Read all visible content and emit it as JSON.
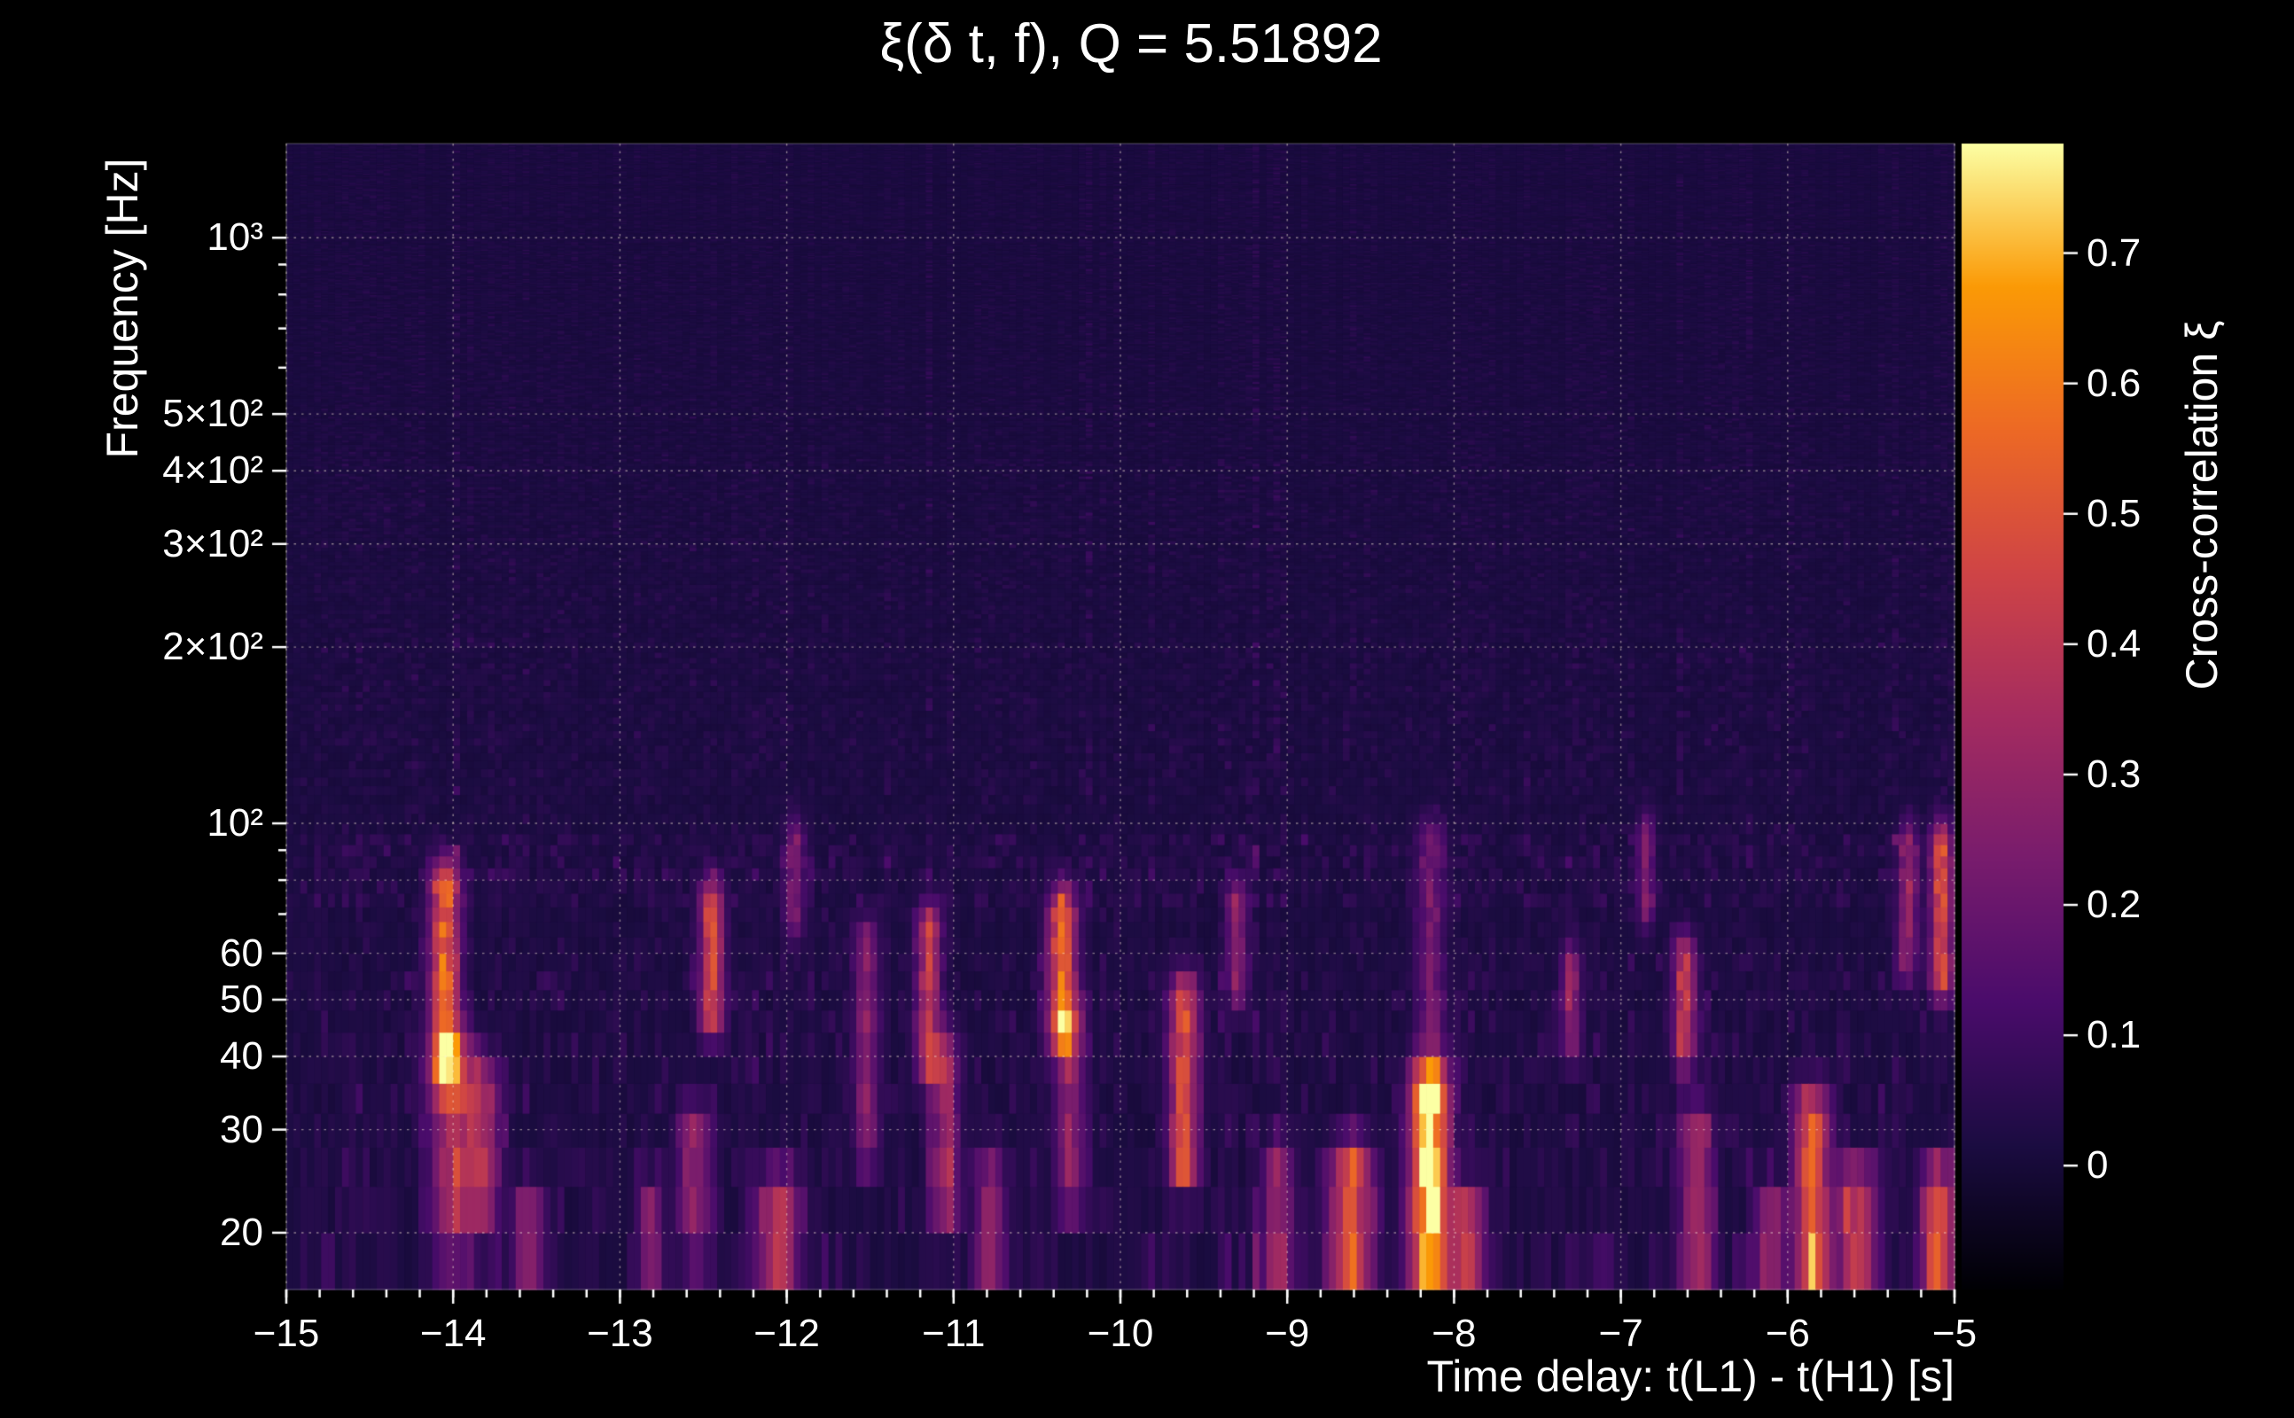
{
  "page": {
    "background": "#000000",
    "text_color": "#ffffff"
  },
  "chart_data": {
    "type": "heatmap",
    "title": "ξ(δ t, f), Q = 5.51892",
    "xlabel": "Time delay: t(L1) - t(H1) [s]",
    "ylabel": "Frequency [Hz]",
    "colorbar_label": "Cross-correlation ξ",
    "x_range": [
      -15,
      -5
    ],
    "x_ticks": [
      -15,
      -14,
      -13,
      -12,
      -11,
      -10,
      -9,
      -8,
      -7,
      -6,
      -5
    ],
    "x_tick_labels": [
      "−15",
      "−14",
      "−13",
      "−12",
      "−11",
      "−10",
      "−9",
      "−8",
      "−7",
      "−6",
      "−5"
    ],
    "x_minor_step": 0.2,
    "y_scale": "log",
    "y_range": [
      16,
      1448
    ],
    "y_ticks": [
      20,
      30,
      40,
      50,
      60,
      100,
      200,
      300,
      400,
      500,
      1000
    ],
    "y_tick_labels": [
      "20",
      "30",
      "40",
      "50",
      "60",
      "10²",
      "2×10²",
      "3×10²",
      "4×10²",
      "5×10²",
      "10³"
    ],
    "y_minor_ticks": [
      70,
      80,
      90,
      600,
      700,
      800,
      900
    ],
    "y_grid": [
      20,
      30,
      40,
      50,
      60,
      80,
      100,
      200,
      300,
      400,
      500,
      1000
    ],
    "value_range": [
      -0.095,
      0.784
    ],
    "colorbar_ticks": [
      0,
      0.1,
      0.2,
      0.3,
      0.4,
      0.5,
      0.6,
      0.7
    ],
    "colorbar_tick_labels": [
      "0",
      "0.1",
      "0.2",
      "0.3",
      "0.4",
      "0.5",
      "0.6",
      "0.7"
    ],
    "grid": "dotted",
    "colormap": {
      "name": "inferno",
      "stops": [
        [
          0.0,
          "#000004"
        ],
        [
          0.125,
          "#1b0c41"
        ],
        [
          0.25,
          "#4a0c6b"
        ],
        [
          0.375,
          "#781c6d"
        ],
        [
          0.5,
          "#a52c60"
        ],
        [
          0.625,
          "#cf4446"
        ],
        [
          0.75,
          "#ed6925"
        ],
        [
          0.875,
          "#fb9a06"
        ],
        [
          1.0,
          "#fcffa4"
        ]
      ]
    },
    "noise": {
      "seed": 1337,
      "n_time_bins": 240,
      "f_step": 4,
      "bands": [
        {
          "f_max": 19,
          "amp": 2.1
        },
        {
          "f_max": 30,
          "amp": 1.7
        },
        {
          "f_max": 62,
          "amp": 1.45
        },
        {
          "f_max": 72,
          "amp": 1.0
        },
        {
          "f_max": 96,
          "amp": 1.75
        },
        {
          "f_max": 112,
          "amp": 0.85
        },
        {
          "f_max": 210,
          "amp": 1.05
        },
        {
          "f_max": 420,
          "amp": 0.9
        },
        {
          "f_max": 99999,
          "amp": 0.8
        }
      ]
    },
    "features": [
      {
        "t": -14.05,
        "f_lo": 38,
        "f_hi": 78,
        "value": 0.55,
        "t_width": 0.06
      },
      {
        "t": -14.0,
        "f_lo": 20,
        "f_hi": 40,
        "value": 0.36,
        "t_width": 0.09
      },
      {
        "t": -13.82,
        "f_lo": 23,
        "f_hi": 36,
        "value": 0.3,
        "t_width": 0.07
      },
      {
        "t": -13.55,
        "f_lo": 16,
        "f_hi": 22,
        "value": 0.28,
        "t_width": 0.06
      },
      {
        "t": -12.82,
        "f_lo": 16,
        "f_hi": 22,
        "value": 0.26,
        "t_width": 0.05
      },
      {
        "t": -12.45,
        "f_lo": 48,
        "f_hi": 72,
        "value": 0.46,
        "t_width": 0.05
      },
      {
        "t": -12.55,
        "f_lo": 20,
        "f_hi": 30,
        "value": 0.26,
        "t_width": 0.07
      },
      {
        "t": -12.05,
        "f_lo": 16,
        "f_hi": 23,
        "value": 0.34,
        "t_width": 0.09
      },
      {
        "t": -11.95,
        "f_lo": 70,
        "f_hi": 92,
        "value": 0.24,
        "t_width": 0.04
      },
      {
        "t": -11.52,
        "f_lo": 28,
        "f_hi": 62,
        "value": 0.26,
        "t_width": 0.05
      },
      {
        "t": -11.15,
        "f_lo": 40,
        "f_hi": 66,
        "value": 0.38,
        "t_width": 0.05
      },
      {
        "t": -11.05,
        "f_lo": 22,
        "f_hi": 40,
        "value": 0.3,
        "t_width": 0.06
      },
      {
        "t": -10.78,
        "f_lo": 16,
        "f_hi": 24,
        "value": 0.3,
        "t_width": 0.06
      },
      {
        "t": -10.35,
        "f_lo": 45,
        "f_hi": 70,
        "value": 0.55,
        "t_width": 0.06
      },
      {
        "t": -10.3,
        "f_lo": 24,
        "f_hi": 45,
        "value": 0.28,
        "t_width": 0.06
      },
      {
        "t": -9.62,
        "f_lo": 26,
        "f_hi": 50,
        "value": 0.46,
        "t_width": 0.06
      },
      {
        "t": -9.3,
        "f_lo": 54,
        "f_hi": 72,
        "value": 0.28,
        "t_width": 0.04
      },
      {
        "t": -9.05,
        "f_lo": 16,
        "f_hi": 26,
        "value": 0.3,
        "t_width": 0.06
      },
      {
        "t": -8.62,
        "f_lo": 16,
        "f_hi": 26,
        "value": 0.5,
        "t_width": 0.09
      },
      {
        "t": -8.15,
        "f_lo": 17,
        "f_hi": 35,
        "value": 0.78,
        "t_width": 0.08
      },
      {
        "t": -8.14,
        "f_lo": 35,
        "f_hi": 92,
        "value": 0.2,
        "t_width": 0.06
      },
      {
        "t": -7.92,
        "f_lo": 16,
        "f_hi": 22,
        "value": 0.34,
        "t_width": 0.07
      },
      {
        "t": -7.3,
        "f_lo": 44,
        "f_hi": 56,
        "value": 0.3,
        "t_width": 0.04
      },
      {
        "t": -6.85,
        "f_lo": 74,
        "f_hi": 94,
        "value": 0.24,
        "t_width": 0.035
      },
      {
        "t": -6.62,
        "f_lo": 42,
        "f_hi": 58,
        "value": 0.38,
        "t_width": 0.05
      },
      {
        "t": -6.55,
        "f_lo": 18,
        "f_hi": 30,
        "value": 0.3,
        "t_width": 0.07
      },
      {
        "t": -6.1,
        "f_lo": 16,
        "f_hi": 22,
        "value": 0.3,
        "t_width": 0.06
      },
      {
        "t": -5.85,
        "f_lo": 18,
        "f_hi": 32,
        "value": 0.55,
        "t_width": 0.07
      },
      {
        "t": -5.58,
        "f_lo": 16,
        "f_hi": 24,
        "value": 0.45,
        "t_width": 0.08
      },
      {
        "t": -5.28,
        "f_lo": 60,
        "f_hi": 90,
        "value": 0.3,
        "t_width": 0.04
      },
      {
        "t": -5.08,
        "f_lo": 55,
        "f_hi": 90,
        "value": 0.48,
        "t_width": 0.045
      },
      {
        "t": -5.1,
        "f_lo": 16,
        "f_hi": 24,
        "value": 0.52,
        "t_width": 0.06
      }
    ]
  }
}
